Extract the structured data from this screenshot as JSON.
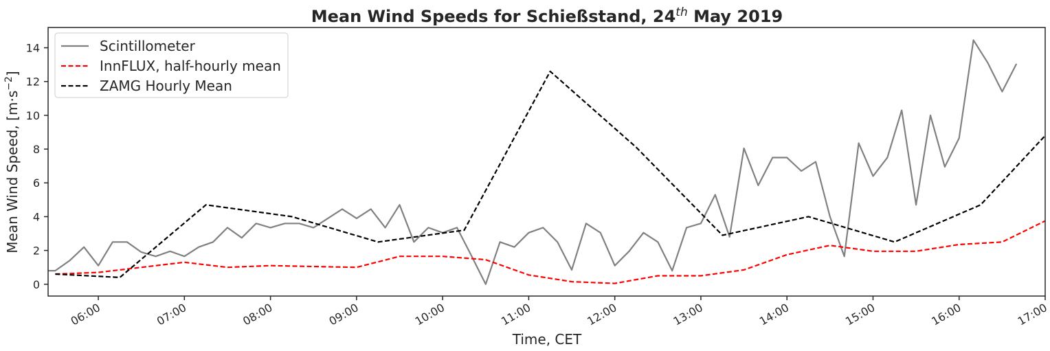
{
  "chart_data": {
    "type": "line",
    "title": "Mean Wind Speeds for Schießstand, 24th May 2019",
    "title_parts": {
      "before": "Mean Wind Speeds for Schießstand, 24",
      "sup": "th",
      "after": " May 2019"
    },
    "xlabel": "Time, CET",
    "ylabel": "Mean Wind Speed, [m·s⁻²]",
    "ylabel_parts": {
      "before": "Mean Wind Speed, [m·s",
      "sup": "−2",
      "after": "]"
    },
    "xlim": [
      "05:25",
      "17:00"
    ],
    "ylim": [
      -0.7,
      15.2
    ],
    "x_ticks": [
      "06:00",
      "07:00",
      "08:00",
      "09:00",
      "10:00",
      "11:00",
      "12:00",
      "13:00",
      "14:00",
      "15:00",
      "16:00",
      "17:00"
    ],
    "y_ticks": [
      0,
      2,
      4,
      6,
      8,
      10,
      12,
      14
    ],
    "grid": false,
    "legend_position": "top-left",
    "series": [
      {
        "name": "Scintillometer",
        "color": "#808080",
        "dash": "solid",
        "x": [
          "05:25",
          "05:30",
          "05:40",
          "05:50",
          "06:00",
          "06:10",
          "06:20",
          "06:30",
          "06:40",
          "06:50",
          "07:00",
          "07:10",
          "07:20",
          "07:30",
          "07:40",
          "07:50",
          "08:00",
          "08:10",
          "08:20",
          "08:30",
          "08:40",
          "08:50",
          "09:00",
          "09:10",
          "09:20",
          "09:30",
          "09:40",
          "09:50",
          "10:00",
          "10:10",
          "10:20",
          "10:30",
          "10:40",
          "10:50",
          "11:00",
          "11:10",
          "11:20",
          "11:30",
          "11:40",
          "11:50",
          "12:00",
          "12:10",
          "12:20",
          "12:30",
          "12:40",
          "12:50",
          "13:00",
          "13:10",
          "13:20",
          "13:30",
          "13:40",
          "13:50",
          "14:00",
          "14:10",
          "14:20",
          "14:30",
          "14:40",
          "14:50",
          "15:00",
          "15:10",
          "15:20",
          "15:30",
          "15:40",
          "15:50",
          "16:00",
          "16:10",
          "16:20",
          "16:30",
          "16:40"
        ],
        "values": [
          0.8,
          0.8,
          1.4,
          2.2,
          1.1,
          2.5,
          2.5,
          1.9,
          1.65,
          1.95,
          1.65,
          2.2,
          2.5,
          3.35,
          2.75,
          3.6,
          3.35,
          3.6,
          3.6,
          3.35,
          3.9,
          4.45,
          3.9,
          4.45,
          3.35,
          4.7,
          2.5,
          3.35,
          3.05,
          3.35,
          1.7,
          0.0,
          2.5,
          2.2,
          3.05,
          3.35,
          2.5,
          0.85,
          3.6,
          3.05,
          1.1,
          1.95,
          3.05,
          2.5,
          0.8,
          3.35,
          3.6,
          5.3,
          2.8,
          8.05,
          5.85,
          7.5,
          7.5,
          6.7,
          7.25,
          4.0,
          1.65,
          8.35,
          6.4,
          7.5,
          10.3,
          4.7,
          10.0,
          6.95,
          8.65,
          14.45,
          13.1,
          11.4,
          13.05
        ]
      },
      {
        "name": "InnFLUX, half-hourly mean",
        "color": "#ff0000",
        "dash": "dashed",
        "x": [
          "05:30",
          "06:00",
          "06:30",
          "07:00",
          "07:30",
          "08:00",
          "08:30",
          "09:00",
          "09:30",
          "10:00",
          "10:30",
          "11:00",
          "11:30",
          "12:00",
          "12:30",
          "13:00",
          "13:30",
          "14:00",
          "14:30",
          "15:00",
          "15:30",
          "16:00",
          "16:30",
          "17:00"
        ],
        "values": [
          0.6,
          0.7,
          1.0,
          1.3,
          1.0,
          1.1,
          1.05,
          1.0,
          1.65,
          1.65,
          1.45,
          0.55,
          0.15,
          0.05,
          0.5,
          0.5,
          0.85,
          1.75,
          2.3,
          1.95,
          1.95,
          2.35,
          2.5,
          3.75
        ]
      },
      {
        "name": "ZAMG Hourly Mean",
        "color": "#000000",
        "dash": "dashed",
        "x": [
          "05:30",
          "06:15",
          "07:15",
          "08:15",
          "09:15",
          "10:15",
          "11:15",
          "12:15",
          "13:15",
          "14:15",
          "15:15",
          "16:15",
          "17:00"
        ],
        "values": [
          0.6,
          0.4,
          4.7,
          4.0,
          2.5,
          3.2,
          12.6,
          8.1,
          2.9,
          4.0,
          2.5,
          4.7,
          8.8
        ]
      }
    ]
  }
}
